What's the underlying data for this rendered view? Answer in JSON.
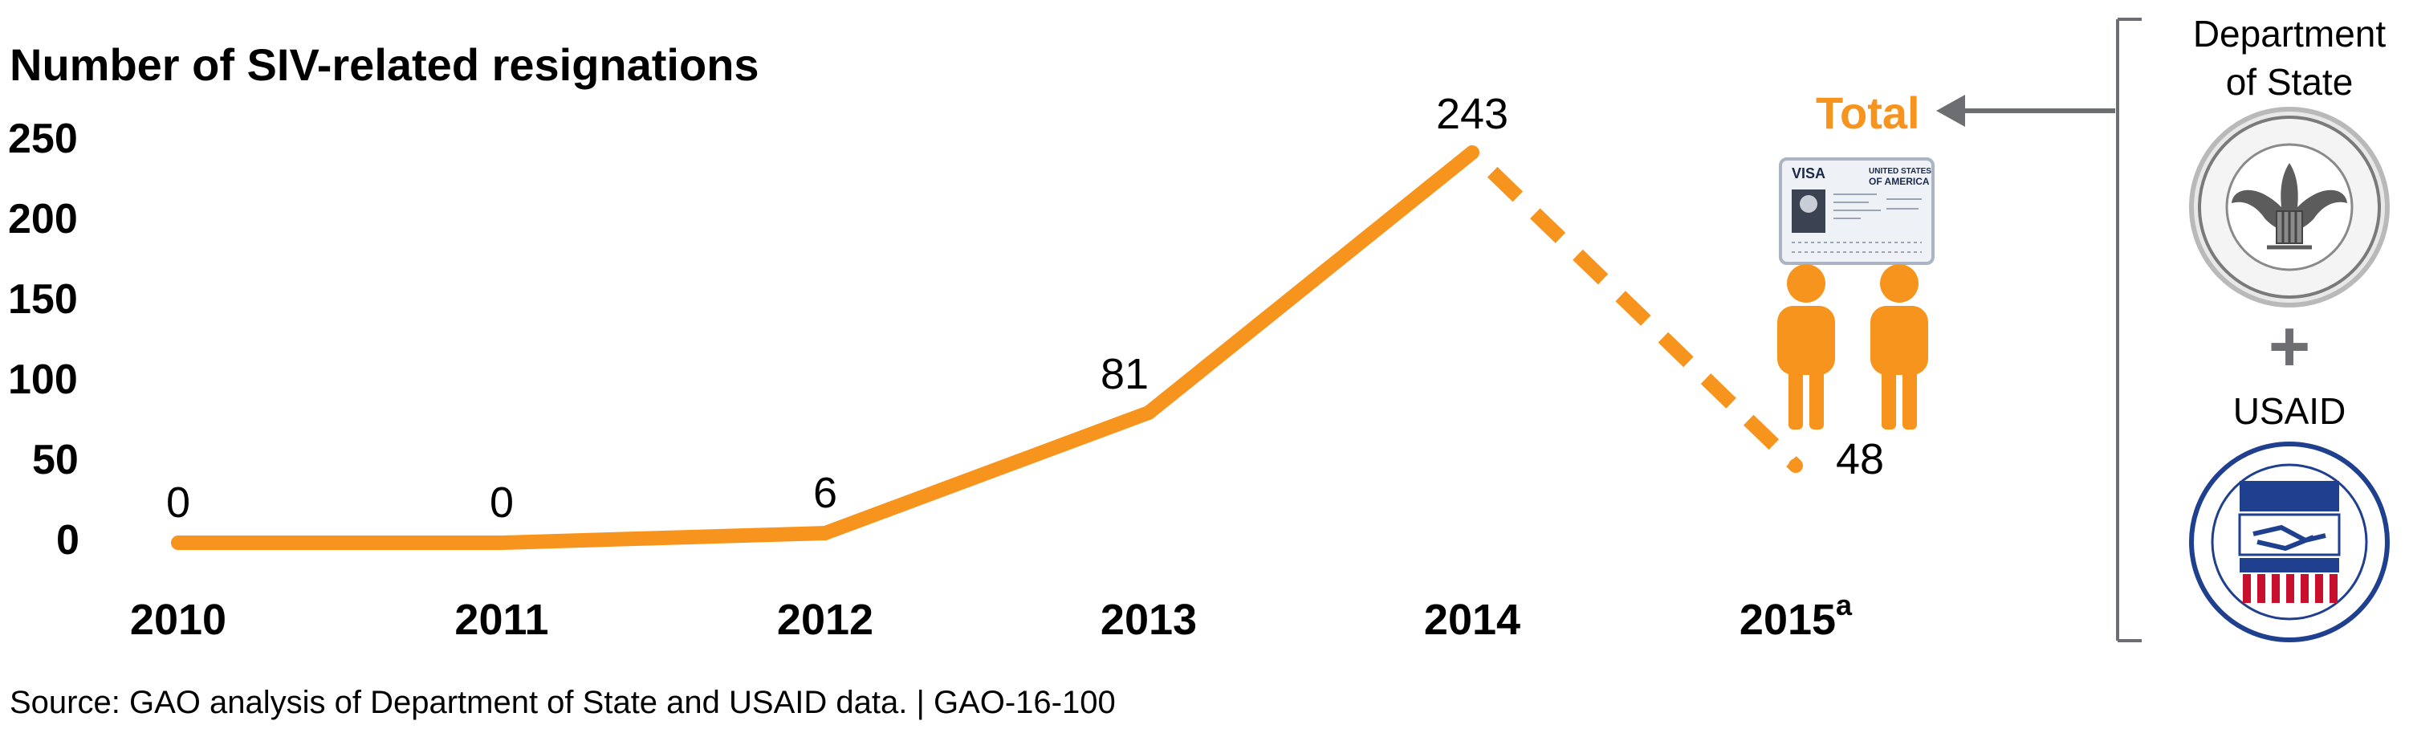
{
  "colors": {
    "accent": "#f7941d",
    "gray": "#6d6e71",
    "navy": "#1b2a4a",
    "red": "#c8102e",
    "seal_blue": "#1f3f8f"
  },
  "chart_data": {
    "type": "line",
    "ylabel": "Number of SIV-related resignations",
    "categories": [
      "2010",
      "2011",
      "2012",
      "2013",
      "2014",
      "2015"
    ],
    "category_superscripts": {
      "2015": "a"
    },
    "values": [
      0,
      0,
      6,
      81,
      243,
      48
    ],
    "data_labels": [
      "0",
      "0",
      "6",
      "81",
      "243",
      "48"
    ],
    "dashed_segment": [
      "2014",
      "2015"
    ],
    "ylim": [
      0,
      250
    ],
    "yticks": [
      "250",
      "200",
      "150",
      "100",
      "50",
      "0"
    ],
    "grid": false
  },
  "legend": {
    "total_label": "Total",
    "agency_line1": "Department",
    "agency_line2": "of State",
    "plus": "+",
    "agency2": "USAID"
  },
  "visa_card": {
    "title": "VISA",
    "country_line1": "UNITED STATES",
    "country_line2": "OF AMERICA"
  },
  "icons": [
    "visa-card-icon",
    "person-icon",
    "person-icon",
    "department-of-state-seal-icon",
    "usaid-seal-icon",
    "arrow-left-icon"
  ],
  "source": "Source: GAO analysis of Department of State and USAID data. | GAO-16-100"
}
